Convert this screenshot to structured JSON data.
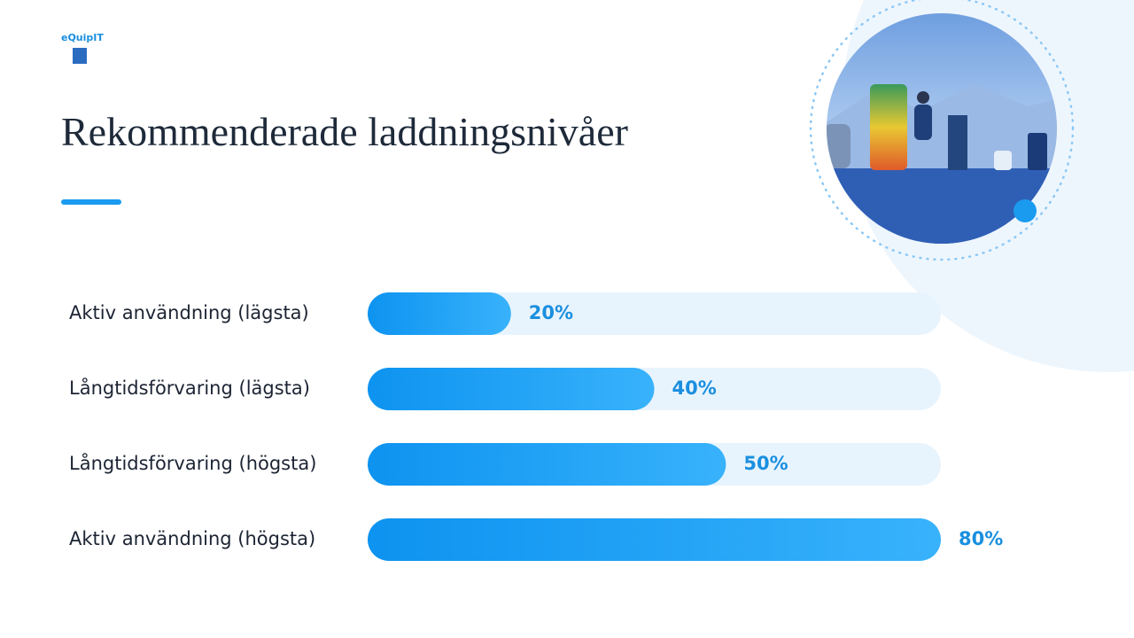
{
  "logo": "eQuipIT",
  "chart_data": {
    "type": "bar",
    "orientation": "horizontal",
    "title": "Rekommenderade laddningsnivåer",
    "categories": [
      "Aktiv användning (lägsta)",
      "Långtidsförvaring (lägsta)",
      "Långtidsförvaring (högsta)",
      "Aktiv användning (högsta)"
    ],
    "values": [
      20,
      40,
      50,
      80
    ],
    "value_labels": [
      "20%",
      "40%",
      "50%",
      "80%"
    ],
    "xlim": [
      0,
      80
    ],
    "color": "#1ea0f5"
  }
}
